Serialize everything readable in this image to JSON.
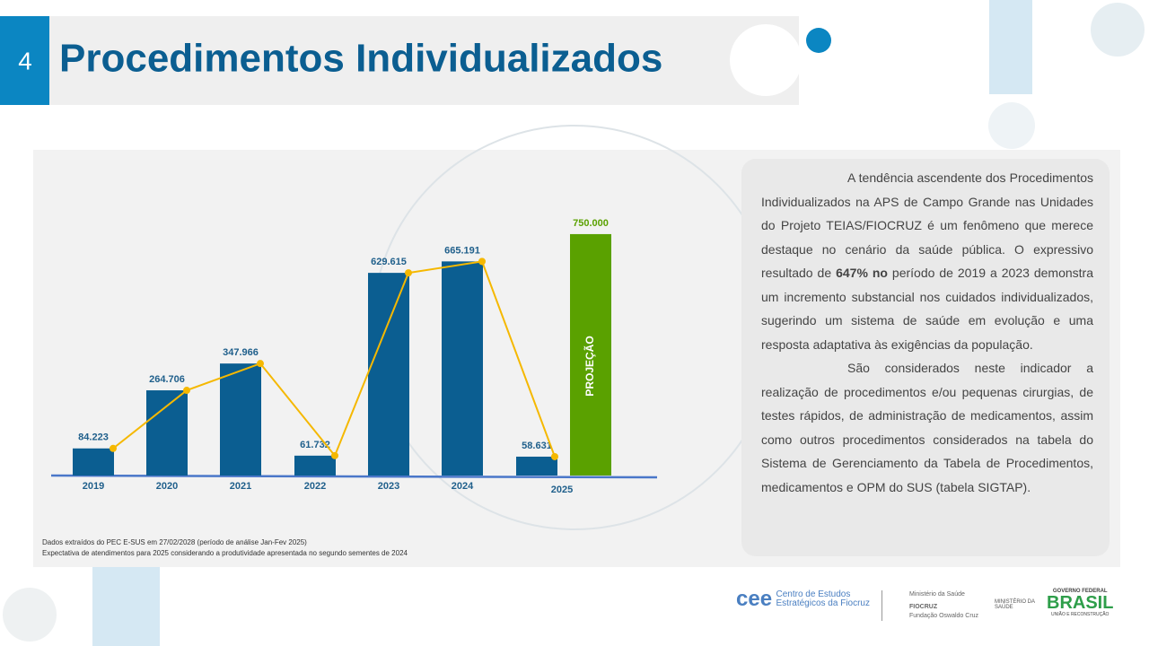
{
  "header": {
    "number": "4",
    "title": "Procedimentos Individualizados"
  },
  "chart_data": {
    "type": "bar",
    "categories": [
      "2019",
      "2020",
      "2021",
      "2022",
      "2023",
      "2024",
      "2025"
    ],
    "values": [
      84223,
      264706,
      347966,
      61732,
      629615,
      665191,
      58631
    ],
    "value_labels": [
      "84.223",
      "264.706",
      "347.966",
      "61.732",
      "629.615",
      "665.191",
      "58.631"
    ],
    "color": "#0b5e91",
    "line_color": "#f5b800",
    "projection": {
      "label": "PROJEÇÃO",
      "value": 750000,
      "value_label": "750.000",
      "color": "#5aa100"
    },
    "ylim": [
      0,
      800000
    ],
    "notes": [
      "Dados extraídos do PEC E-SUS em 27/02/2028 (período de análise Jan-Fev 2025)",
      "Expectativa de atendimentos para 2025 considerando a produtividade apresentada no segundo sementes de 2024"
    ]
  },
  "text_panel": {
    "paragraph1": {
      "before": "A tendência ascendente dos Procedimentos Individualizados na APS de Campo Grande nas Unidades do Projeto TEIAS/FIOCRUZ é um fenômeno que merece destaque no cenário da saúde pública. O expressivo resultado de ",
      "bold": "647% no",
      "after": " período de 2019 a 2023 demonstra um incremento substancial nos cuidados individualizados, sugerindo um sistema de saúde em evolução e uma resposta adaptativa às exigências da população."
    },
    "paragraph2": "São considerados neste indicador a realização de procedimentos e/ou pequenas cirurgias, de testes rápidos, de administração de medicamentos, assim como outros procedimentos considerados na tabela do Sistema de Gerenciamento da Tabela de Procedimentos, medicamentos e OPM do SUS (tabela SIGTAP)."
  },
  "footer": {
    "cee": "cee",
    "cee_line1": "Centro de Estudos",
    "cee_line2": "Estratégicos da Fiocruz",
    "ms": "Ministério da Saúde",
    "fiocruz": "FIOCRUZ",
    "fiocruz_sub": "Fundação Oswaldo Cruz",
    "ministerio": "MINISTÉRIO DA SAÚDE",
    "gov": "GOVERNO FEDERAL",
    "brasil": "BRASIL",
    "uniao": "UNIÃO E RECONSTRUÇÃO"
  }
}
